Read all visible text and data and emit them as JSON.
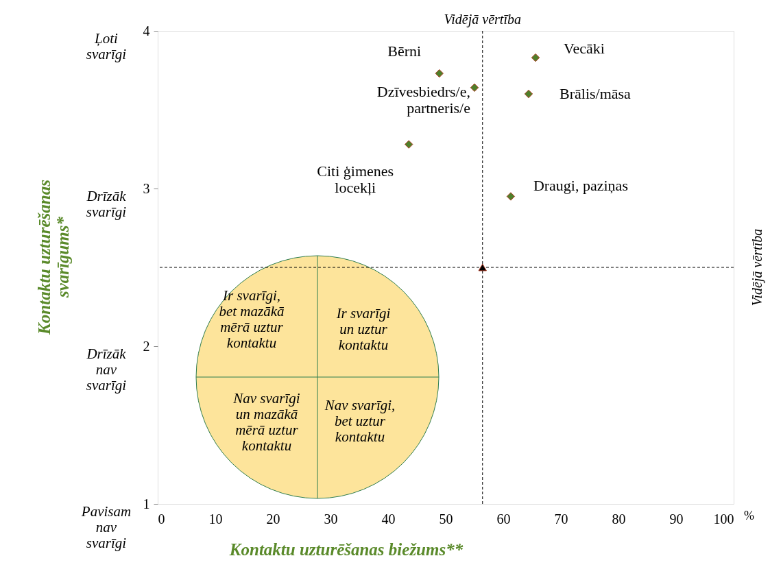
{
  "chart_data": {
    "type": "scatter",
    "xlabel": "Kontaktu uzturēšanas biežums**",
    "ylabel": "Kontaktu uzturēšanas svarīgums*",
    "series": [
      {
        "name": "Bērni",
        "x": [
          48.9
        ],
        "values": [
          3.73
        ],
        "color": "#4f7f2a"
      },
      {
        "name": "Dzīvesbiedrs/e, partneris/e",
        "x": [
          55.0
        ],
        "values": [
          3.64
        ],
        "color": "#4f7f2a"
      },
      {
        "name": "Vecāki",
        "x": [
          65.6
        ],
        "values": [
          3.83
        ],
        "color": "#4f7f2a"
      },
      {
        "name": "Brālis/māsa",
        "x": [
          64.4
        ],
        "values": [
          3.6
        ],
        "color": "#4f7f2a"
      },
      {
        "name": "Citi ģimenes locekļi",
        "x": [
          43.6
        ],
        "values": [
          3.28
        ],
        "color": "#4f7f2a"
      },
      {
        "name": "Draugi, paziņas",
        "x": [
          61.3
        ],
        "values": [
          2.95
        ],
        "color": "#4f7f2a"
      },
      {
        "x": [
          56.4
        ],
        "values": [
          2.5
        ],
        "color": "#000000",
        "marker": "triangle"
      }
    ],
    "marker": "diamond",
    "xlim": [
      0,
      100
    ],
    "xticks": [
      0,
      10,
      20,
      30,
      40,
      50,
      60,
      70,
      80,
      90,
      100
    ],
    "ylim": [
      1,
      4
    ],
    "yticks": [
      1,
      2,
      3,
      4
    ],
    "grid": false,
    "legend": false,
    "ref_lines": [
      {
        "axis": "x",
        "value": 56.4,
        "label": "Vidējā vērtība",
        "line_style": "dashed",
        "color": "#000000"
      },
      {
        "axis": "y",
        "value": 2.5,
        "label": "Vidējā vērtība",
        "line_style": "dashed",
        "color": "#000000"
      }
    ],
    "annotations": [
      "Ļoti svarīgi",
      "Drīzāk svarīgi",
      "Drīzāk nav svarīgi",
      "Pavisam nav svarīgi",
      "Ir svarīgi, bet mazākā mērā uztur kontaktu",
      "Ir svarīgi un uztur kontaktu",
      "Nav svarīgi un mazākā mērā uztur kontaktu",
      "Nav svarīgi, bet uztur kontaktu",
      "%"
    ]
  }
}
